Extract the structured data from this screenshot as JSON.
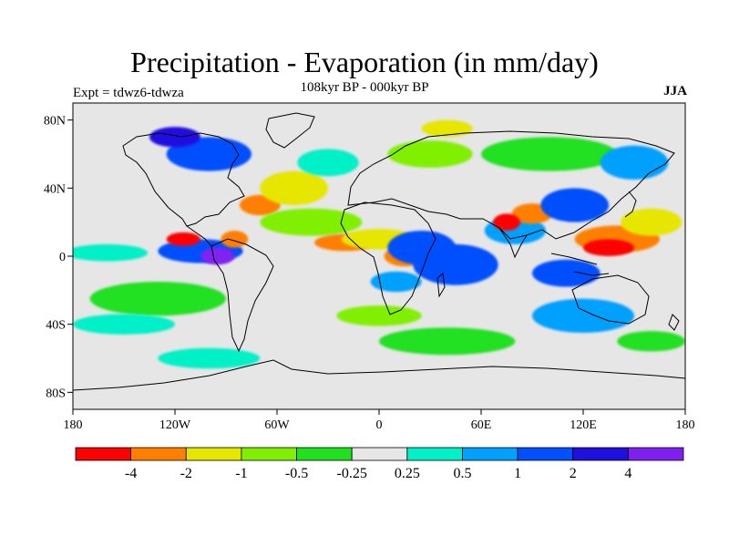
{
  "title": "Precipitation - Evaporation (in mm/day)",
  "subtitle": "108kyr BP - 000kyr BP",
  "experiment": "Expt = tdwz6-tdwza",
  "season": "JJA",
  "map": {
    "lon_range": [
      -180,
      180
    ],
    "lat_range": [
      -90,
      90
    ],
    "lat_ticks": [
      {
        "value": 80,
        "label": "80N"
      },
      {
        "value": 40,
        "label": "40N"
      },
      {
        "value": 0,
        "label": "0"
      },
      {
        "value": -40,
        "label": "40S"
      },
      {
        "value": -80,
        "label": "80S"
      }
    ],
    "lon_ticks": [
      {
        "value": -180,
        "label": "180"
      },
      {
        "value": -120,
        "label": "120W"
      },
      {
        "value": -60,
        "label": "60W"
      },
      {
        "value": 0,
        "label": "0"
      },
      {
        "value": 60,
        "label": "60E"
      },
      {
        "value": 120,
        "label": "120E"
      },
      {
        "value": 180,
        "label": "180"
      }
    ],
    "background_color": "#e6e6e6"
  },
  "colorbar": {
    "colors": [
      "#ff0000",
      "#ff8000",
      "#e6e600",
      "#80f000",
      "#20e020",
      "#e6e6e6",
      "#00f0c8",
      "#00a0ff",
      "#0050ff",
      "#2010e0",
      "#8020f0"
    ],
    "labels": [
      "-4",
      "-2",
      "-1",
      "-0.5",
      "-0.25",
      "0.25",
      "0.5",
      "1",
      "2",
      "4"
    ]
  },
  "features": [
    {
      "lon": -160,
      "lat": 2,
      "rx": 24,
      "ry": 5,
      "level": 6
    },
    {
      "lon": -105,
      "lat": 3,
      "rx": 25,
      "ry": 7,
      "level": 8
    },
    {
      "lon": -95,
      "lat": 0,
      "rx": 10,
      "ry": 5,
      "level": 10
    },
    {
      "lon": -115,
      "lat": 10,
      "rx": 10,
      "ry": 4,
      "level": 0
    },
    {
      "lon": -85,
      "lat": 10,
      "rx": 8,
      "ry": 5,
      "level": 1
    },
    {
      "lon": -70,
      "lat": 30,
      "rx": 12,
      "ry": 6,
      "level": 1
    },
    {
      "lon": -50,
      "lat": 40,
      "rx": 20,
      "ry": 10,
      "level": 2
    },
    {
      "lon": -40,
      "lat": 20,
      "rx": 30,
      "ry": 8,
      "level": 3
    },
    {
      "lon": -20,
      "lat": 8,
      "rx": 18,
      "ry": 5,
      "level": 1
    },
    {
      "lon": 15,
      "lat": 0,
      "rx": 12,
      "ry": 6,
      "level": 1
    },
    {
      "lon": 0,
      "lat": 10,
      "rx": 22,
      "ry": 6,
      "level": 2
    },
    {
      "lon": 25,
      "lat": 5,
      "rx": 20,
      "ry": 10,
      "level": 8
    },
    {
      "lon": 45,
      "lat": -5,
      "rx": 25,
      "ry": 12,
      "level": 8
    },
    {
      "lon": 10,
      "lat": -15,
      "rx": 15,
      "ry": 6,
      "level": 7
    },
    {
      "lon": 80,
      "lat": 15,
      "rx": 18,
      "ry": 8,
      "level": 7
    },
    {
      "lon": 90,
      "lat": 25,
      "rx": 12,
      "ry": 6,
      "level": 1
    },
    {
      "lon": 75,
      "lat": 20,
      "rx": 8,
      "ry": 5,
      "level": 0
    },
    {
      "lon": 115,
      "lat": 30,
      "rx": 20,
      "ry": 10,
      "level": 8
    },
    {
      "lon": 140,
      "lat": 10,
      "rx": 25,
      "ry": 8,
      "level": 1
    },
    {
      "lon": 135,
      "lat": 5,
      "rx": 15,
      "ry": 5,
      "level": 0
    },
    {
      "lon": 110,
      "lat": -10,
      "rx": 20,
      "ry": 8,
      "level": 8
    },
    {
      "lon": 160,
      "lat": 20,
      "rx": 18,
      "ry": 8,
      "level": 2
    },
    {
      "lon": 120,
      "lat": -35,
      "rx": 30,
      "ry": 10,
      "level": 7
    },
    {
      "lon": -130,
      "lat": -25,
      "rx": 40,
      "ry": 10,
      "level": 4
    },
    {
      "lon": -150,
      "lat": -40,
      "rx": 30,
      "ry": 6,
      "level": 6
    },
    {
      "lon": 40,
      "lat": -50,
      "rx": 40,
      "ry": 8,
      "level": 4
    },
    {
      "lon": 0,
      "lat": -35,
      "rx": 25,
      "ry": 6,
      "level": 3
    },
    {
      "lon": -100,
      "lat": 60,
      "rx": 25,
      "ry": 10,
      "level": 8
    },
    {
      "lon": -120,
      "lat": 70,
      "rx": 15,
      "ry": 6,
      "level": 9
    },
    {
      "lon": 30,
      "lat": 60,
      "rx": 25,
      "ry": 8,
      "level": 3
    },
    {
      "lon": 40,
      "lat": 75,
      "rx": 15,
      "ry": 5,
      "level": 2
    },
    {
      "lon": 100,
      "lat": 60,
      "rx": 40,
      "ry": 10,
      "level": 4
    },
    {
      "lon": 150,
      "lat": 55,
      "rx": 20,
      "ry": 10,
      "level": 7
    },
    {
      "lon": -30,
      "lat": 55,
      "rx": 18,
      "ry": 8,
      "level": 6
    },
    {
      "lon": -100,
      "lat": -60,
      "rx": 30,
      "ry": 6,
      "level": 6
    },
    {
      "lon": 160,
      "lat": -50,
      "rx": 20,
      "ry": 6,
      "level": 4
    }
  ]
}
